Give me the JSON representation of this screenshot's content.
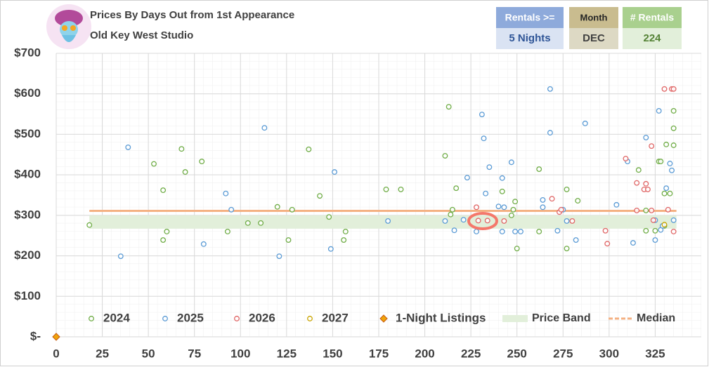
{
  "header": {
    "title": "Prices By Days Out from 1st Appearance",
    "subtitle": "Old Key West Studio",
    "filters": [
      {
        "label": "Rentals >=",
        "value": "5 Nights"
      },
      {
        "label": "Month",
        "value": "DEC"
      },
      {
        "label": "# Rentals",
        "value": 224
      }
    ]
  },
  "chart_data": {
    "type": "scatter",
    "xlim": [
      0,
      350
    ],
    "xticks": [
      0,
      25,
      50,
      75,
      100,
      125,
      150,
      175,
      200,
      225,
      250,
      275,
      300,
      325
    ],
    "ylim": [
      0,
      700
    ],
    "yticks": [
      {
        "value": 0,
        "label": "$-"
      },
      {
        "value": 100,
        "label": "$100"
      },
      {
        "value": 200,
        "label": "$200"
      },
      {
        "value": 300,
        "label": "$300"
      },
      {
        "value": 400,
        "label": "$400"
      },
      {
        "value": 500,
        "label": "$500"
      },
      {
        "value": 600,
        "label": "$600"
      },
      {
        "value": 700,
        "label": "$700"
      }
    ],
    "grid": true,
    "series": [
      {
        "name": "2024",
        "color": "#70ad47",
        "x": [
          18,
          53,
          58,
          58,
          60,
          68,
          70,
          79,
          93,
          104,
          111,
          120,
          126,
          128,
          137,
          143,
          148,
          156,
          157,
          179,
          187,
          211,
          213,
          217,
          214,
          215,
          242,
          247,
          248,
          249,
          250,
          262,
          262,
          277,
          277,
          283,
          316,
          320,
          320,
          327,
          328,
          325,
          330,
          331,
          335,
          335,
          335,
          333,
          330
        ],
        "values": [
          276,
          427,
          362,
          239,
          260,
          464,
          407,
          433,
          260,
          281,
          281,
          321,
          239,
          314,
          463,
          348,
          296,
          239,
          260,
          364,
          364,
          447,
          568,
          367,
          302,
          314,
          359,
          300,
          314,
          334,
          218,
          414,
          260,
          364,
          218,
          336,
          412,
          262,
          312,
          433,
          433,
          262,
          354,
          475,
          558,
          515,
          473,
          354,
          274
        ]
      },
      {
        "name": "2025",
        "color": "#5b9bd5",
        "x": [
          35,
          39,
          80,
          92,
          95,
          113,
          121,
          149,
          151,
          180,
          211,
          216,
          221,
          223,
          228,
          231,
          232,
          233,
          235,
          240,
          242,
          242,
          243,
          247,
          249,
          252,
          264,
          264,
          268,
          268,
          272,
          275,
          277,
          282,
          287,
          304,
          310,
          313,
          320,
          327,
          325,
          325,
          328,
          331,
          333,
          334,
          335,
          329
        ],
        "values": [
          199,
          468,
          229,
          354,
          314,
          516,
          199,
          217,
          407,
          286,
          286,
          263,
          289,
          393,
          260,
          549,
          490,
          354,
          419,
          322,
          392,
          260,
          320,
          431,
          260,
          260,
          338,
          320,
          612,
          504,
          262,
          314,
          286,
          239,
          527,
          326,
          433,
          232,
          492,
          558,
          288,
          239,
          264,
          367,
          428,
          411,
          288,
          274
        ]
      },
      {
        "name": "2026",
        "color": "#e06666",
        "x": [
          228,
          229,
          234,
          243,
          269,
          273,
          274,
          280,
          298,
          299,
          309,
          315,
          315,
          319,
          320,
          321,
          323,
          323,
          324,
          330,
          334,
          335,
          332,
          335
        ],
        "values": [
          320,
          287,
          287,
          286,
          341,
          308,
          314,
          286,
          262,
          230,
          440,
          380,
          312,
          364,
          378,
          364,
          471,
          312,
          288,
          612,
          612,
          612,
          314,
          260
        ]
      },
      {
        "name": "2027",
        "color": "#c9a400",
        "x": [
          330
        ],
        "values": [
          277
        ]
      },
      {
        "name": "1-Night Listings",
        "color": "#f0a30a",
        "marker": "diamond",
        "x": [
          0
        ],
        "values": [
          0
        ]
      }
    ],
    "price_band": {
      "name": "Price Band",
      "low": 267,
      "high": 300,
      "color": "#e2efda"
    },
    "median": {
      "name": "Median",
      "value": 311,
      "color": "#f4b183"
    }
  }
}
